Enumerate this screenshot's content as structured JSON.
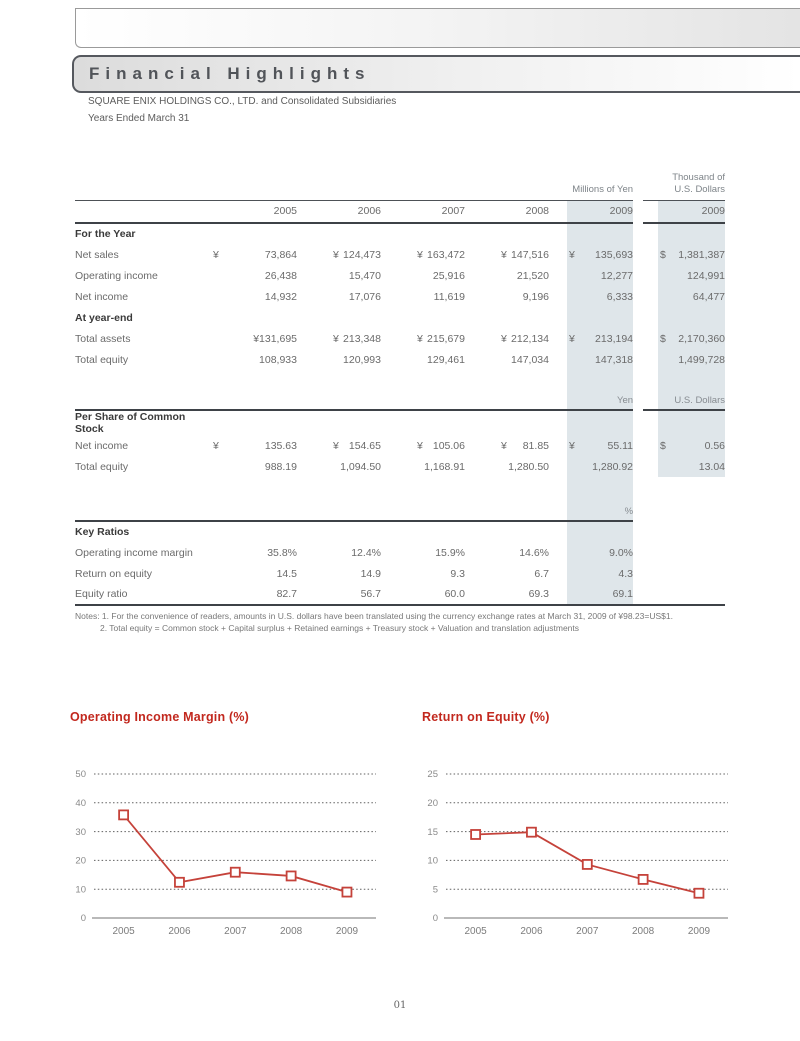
{
  "header": {
    "title": "Financial Highlights",
    "company": "SQUARE ENIX HOLDINGS CO., LTD. and Consolidated Subsidiaries",
    "period": "Years Ended March 31"
  },
  "table": {
    "unit_yen": "Millions of Yen",
    "unit_usd_line1": "Thousand of",
    "unit_usd_line2": "U.S. Dollars",
    "years": [
      "2005",
      "2006",
      "2007",
      "2008",
      "2009"
    ],
    "usd_year": "2009",
    "sections": [
      {
        "title": "For the Year",
        "usd_highlight": true,
        "rows": [
          {
            "label": "Net sales",
            "values": [
              "¥ 73,864",
              "¥ 124,473",
              "¥ 163,472",
              "¥ 147,516",
              "¥ 135,693"
            ],
            "usd": "$ 1,381,387"
          },
          {
            "label": "Operating income",
            "values": [
              "26,438",
              "15,470",
              "25,916",
              "21,520",
              "12,277"
            ],
            "usd": "124,991"
          },
          {
            "label": "Net income",
            "values": [
              "14,932",
              "17,076",
              "11,619",
              "9,196",
              "6,333"
            ],
            "usd": "64,477"
          }
        ]
      },
      {
        "title": "At year-end",
        "usd_highlight": true,
        "rows": [
          {
            "label": "Total assets",
            "values": [
              "¥131,695",
              "¥ 213,348",
              "¥ 215,679",
              "¥ 212,134",
              "¥ 213,194"
            ],
            "usd": "$ 2,170,360"
          },
          {
            "label": "Total equity",
            "values": [
              "108,933",
              "120,993",
              "129,461",
              "147,034",
              "147,318"
            ],
            "usd": "1,499,728"
          }
        ]
      },
      {
        "title": "Per Share of Common Stock",
        "usd_highlight": true,
        "unit_row": {
          "yen": "Yen",
          "usd": "U.S. Dollars",
          "gap": "A"
        },
        "rows": [
          {
            "label": "Net income",
            "values": [
              "¥ 135.63",
              "¥ 154.65",
              "¥ 105.06",
              "¥ 81.85",
              "¥ 55.11"
            ],
            "usd": "$ 0.56"
          },
          {
            "label": "Total equity",
            "values": [
              "988.19",
              "1,094.50",
              "1,168.91",
              "1,280.50",
              "1,280.92"
            ],
            "usd": "13.04"
          }
        ]
      },
      {
        "title": "Key Ratios",
        "usd_highlight": false,
        "unit_row": {
          "yen": "%",
          "usd": "",
          "gap": "B"
        },
        "rows": [
          {
            "label": "Operating income margin",
            "values": [
              "35.8%",
              "12.4%",
              "15.9%",
              "14.6%",
              "9.0%"
            ],
            "usd": ""
          },
          {
            "label": "Return on equity",
            "values": [
              "14.5",
              "14.9",
              "9.3",
              "6.7",
              "4.3"
            ],
            "usd": ""
          },
          {
            "label": "Equity ratio",
            "values": [
              "82.7",
              "56.7",
              "60.0",
              "69.3",
              "69.1"
            ],
            "usd": ""
          }
        ]
      }
    ],
    "notes_line1": "Notes: 1. For the convenience of readers, amounts in U.S. dollars have been translated using the currency exchange rates at March 31, 2009 of ¥98.23=US$1.",
    "notes_line2": "2. Total equity = Common stock + Capital surplus + Retained earnings + Treasury stock + Valuation and translation adjustments"
  },
  "chart_data": [
    {
      "type": "line",
      "title": "Operating Income Margin (%)",
      "categories": [
        "2005",
        "2006",
        "2007",
        "2008",
        "2009"
      ],
      "values": [
        35.8,
        12.4,
        15.9,
        14.6,
        9.0
      ],
      "ylim": [
        0,
        50
      ],
      "yticks": [
        0,
        10,
        20,
        30,
        40,
        50
      ],
      "grid": "dotted horizontal",
      "line_color": "#c5423a",
      "marker": "square"
    },
    {
      "type": "line",
      "title": "Return on Equity (%)",
      "categories": [
        "2005",
        "2006",
        "2007",
        "2008",
        "2009"
      ],
      "values": [
        14.5,
        14.9,
        9.3,
        6.7,
        4.3
      ],
      "ylim": [
        0,
        25
      ],
      "yticks": [
        0,
        5,
        10,
        15,
        20,
        25
      ],
      "grid": "dotted horizontal",
      "line_color": "#c5423a",
      "marker": "square"
    }
  ],
  "page": {
    "number": "01"
  }
}
